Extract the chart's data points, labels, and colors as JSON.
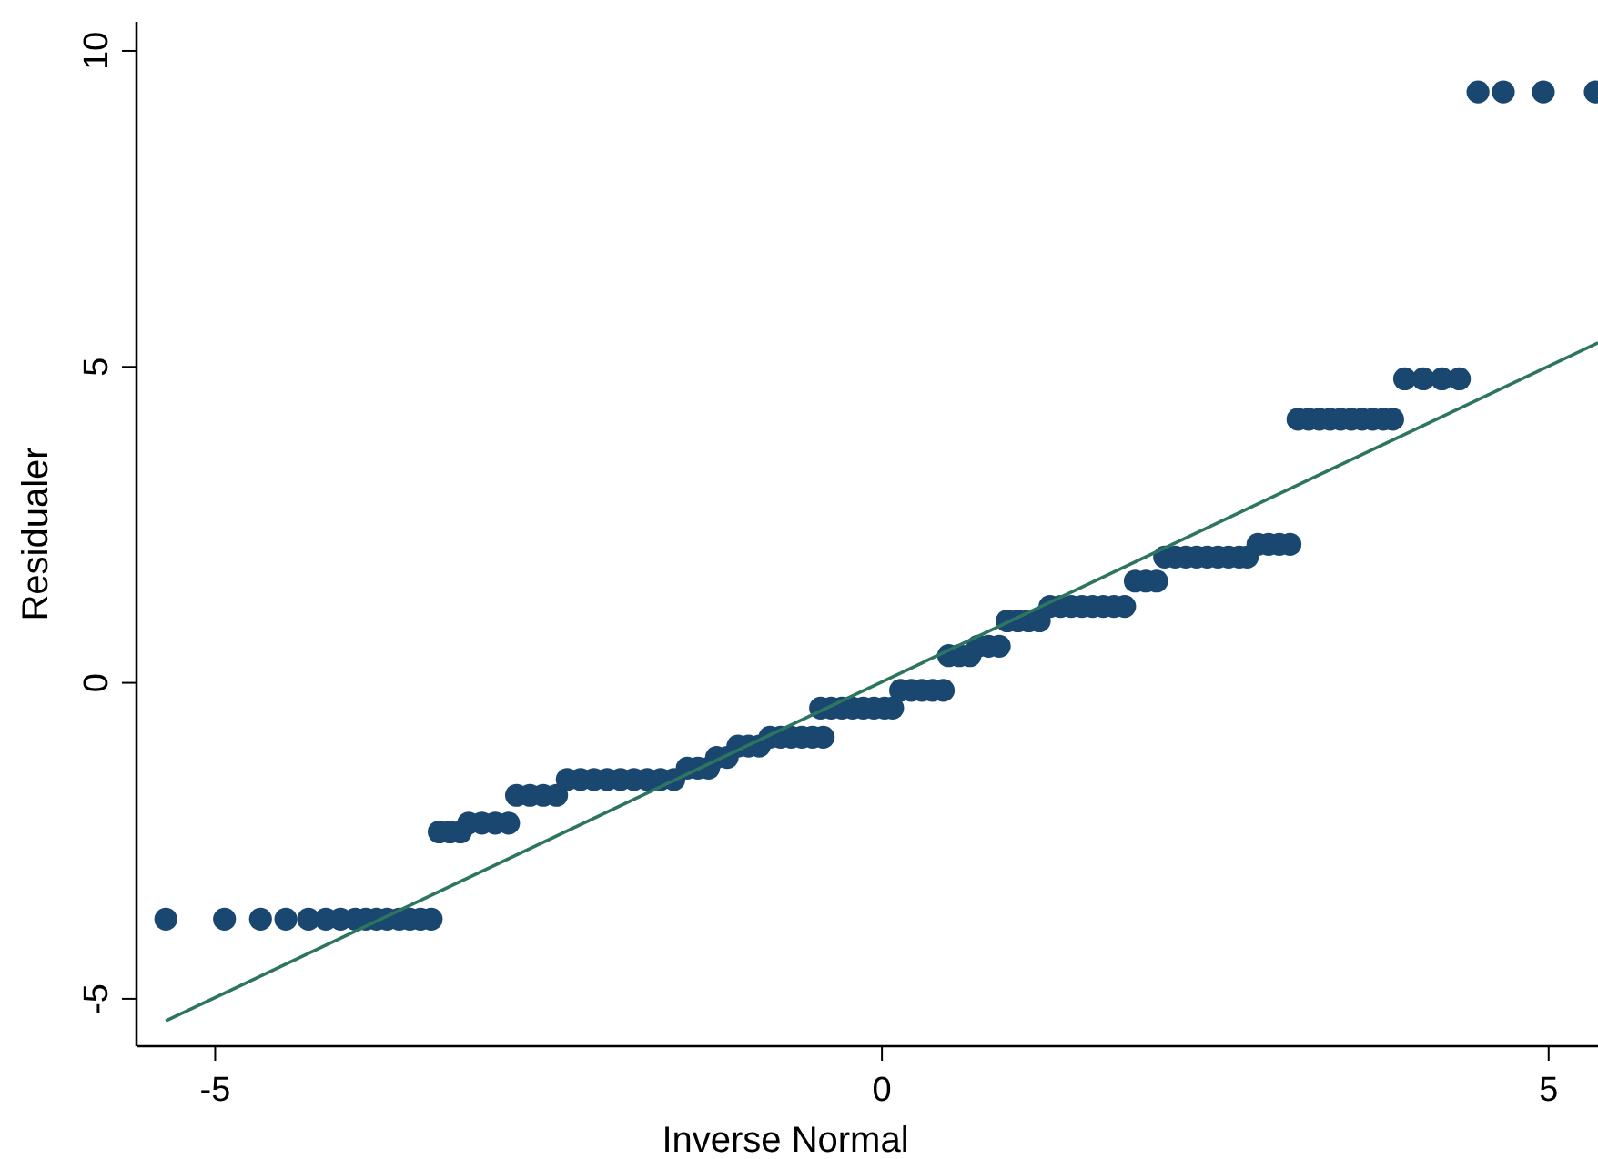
{
  "chart_data": {
    "type": "scatter",
    "xlabel": "Inverse Normal",
    "ylabel": "Residualer",
    "xlim": [
      -5.59,
      5.37
    ],
    "ylim": [
      -5.75,
      10.46
    ],
    "xticks": [
      -5,
      0,
      5
    ],
    "yticks": [
      -5,
      0,
      5,
      10
    ],
    "grid": false,
    "series": [
      {
        "color": "#1a476f",
        "marker": "circle",
        "x": [
          -5.37,
          -4.93,
          -4.66,
          -4.47,
          -4.3,
          -4.17,
          -4.06,
          -3.95,
          -3.87,
          -3.79,
          -3.71,
          -3.62,
          -3.54,
          -3.46,
          -3.38,
          -3.32,
          -3.24,
          -3.16,
          -3.1,
          -3.0,
          -2.9,
          -2.8,
          -2.74,
          -2.64,
          -2.54,
          -2.44,
          -2.36,
          -2.26,
          -2.16,
          -2.06,
          -1.96,
          -1.86,
          -1.76,
          -1.66,
          -1.56,
          -1.46,
          -1.38,
          -1.3,
          -1.24,
          -1.16,
          -1.08,
          -1.0,
          -0.92,
          -0.84,
          -0.76,
          -0.68,
          -0.6,
          -0.52,
          -0.44,
          -0.46,
          -0.38,
          -0.3,
          -0.22,
          -0.14,
          -0.06,
          0.02,
          0.08,
          0.14,
          0.22,
          0.3,
          0.38,
          0.46,
          0.5,
          0.58,
          0.66,
          0.72,
          0.8,
          0.88,
          0.94,
          1.02,
          1.1,
          1.18,
          1.26,
          1.34,
          1.42,
          1.5,
          1.58,
          1.66,
          1.74,
          1.82,
          1.9,
          1.98,
          2.06,
          2.12,
          2.2,
          2.28,
          2.36,
          2.44,
          2.52,
          2.6,
          2.68,
          2.74,
          2.82,
          2.9,
          2.98,
          3.06,
          3.12,
          3.2,
          3.28,
          3.36,
          3.44,
          3.52,
          3.6,
          3.68,
          3.76,
          3.83,
          3.92,
          4.06,
          4.2,
          4.33,
          4.47,
          4.66,
          4.96,
          5.35
        ],
        "values": [
          -3.74,
          -3.74,
          -3.74,
          -3.74,
          -3.74,
          -3.74,
          -3.74,
          -3.74,
          -3.74,
          -3.74,
          -3.74,
          -3.74,
          -3.74,
          -3.74,
          -3.74,
          -2.36,
          -2.36,
          -2.36,
          -2.22,
          -2.22,
          -2.22,
          -2.22,
          -1.78,
          -1.78,
          -1.78,
          -1.78,
          -1.53,
          -1.53,
          -1.53,
          -1.53,
          -1.53,
          -1.53,
          -1.53,
          -1.53,
          -1.53,
          -1.35,
          -1.35,
          -1.35,
          -1.18,
          -1.18,
          -1.0,
          -1.0,
          -1.0,
          -0.86,
          -0.86,
          -0.86,
          -0.86,
          -0.86,
          -0.86,
          -0.4,
          -0.4,
          -0.4,
          -0.4,
          -0.4,
          -0.4,
          -0.4,
          -0.4,
          -0.12,
          -0.12,
          -0.12,
          -0.12,
          -0.12,
          0.43,
          0.43,
          0.43,
          0.58,
          0.58,
          0.58,
          0.98,
          0.98,
          0.98,
          0.98,
          1.21,
          1.21,
          1.21,
          1.21,
          1.21,
          1.21,
          1.21,
          1.21,
          1.61,
          1.61,
          1.61,
          1.99,
          1.99,
          1.99,
          1.99,
          1.99,
          1.99,
          1.99,
          1.99,
          1.99,
          2.19,
          2.19,
          2.19,
          2.19,
          4.17,
          4.17,
          4.17,
          4.17,
          4.17,
          4.17,
          4.17,
          4.17,
          4.17,
          4.17,
          4.81,
          4.81,
          4.81,
          4.81,
          9.35,
          9.35,
          9.35,
          9.35
        ]
      },
      {
        "type": "line",
        "color": "#2e7561",
        "line_style": "solid",
        "marker": "none",
        "x": [
          -5.37,
          5.37
        ],
        "values": [
          -5.35,
          5.38
        ]
      }
    ]
  }
}
